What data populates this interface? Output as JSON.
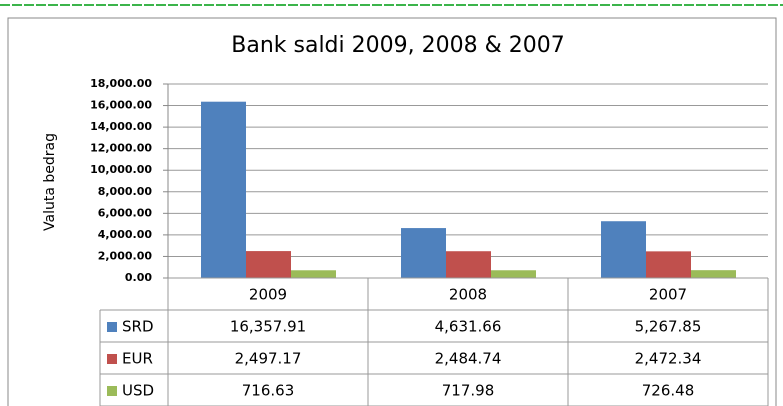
{
  "chart_data": {
    "type": "bar",
    "title": "Bank saldi 2009, 2008 & 2007",
    "y_label": "Valuta bedrag",
    "categories": [
      "2009",
      "2008",
      "2007"
    ],
    "series": [
      {
        "name": "SRD",
        "color": "#4f81bd",
        "values": [
          16357.91,
          4631.66,
          5267.85
        ],
        "value_labels": [
          "16,357.91",
          "4,631.66",
          "5,267.85"
        ]
      },
      {
        "name": "EUR",
        "color": "#c0504d",
        "values": [
          2497.17,
          2484.74,
          2472.34
        ],
        "value_labels": [
          "2,497.17",
          "2,484.74",
          "2,472.34"
        ]
      },
      {
        "name": "USD",
        "color": "#9bbb59",
        "values": [
          716.63,
          717.98,
          726.48
        ],
        "value_labels": [
          "716.63",
          "717.98",
          "726.48"
        ]
      }
    ],
    "ylim": [
      0,
      18000
    ],
    "yticks": [
      {
        "value": 0,
        "label": "0.00"
      },
      {
        "value": 2000,
        "label": "2,000.00"
      },
      {
        "value": 4000,
        "label": "4,000.00"
      },
      {
        "value": 6000,
        "label": "6,000.00"
      },
      {
        "value": 8000,
        "label": "8,000.00"
      },
      {
        "value": 10000,
        "label": "10,000.00"
      },
      {
        "value": 12000,
        "label": "12,000.00"
      },
      {
        "value": 14000,
        "label": "14,000.00"
      },
      {
        "value": 16000,
        "label": "16,000.00"
      },
      {
        "value": 18000,
        "label": "18,000.00"
      }
    ],
    "grid": true
  }
}
